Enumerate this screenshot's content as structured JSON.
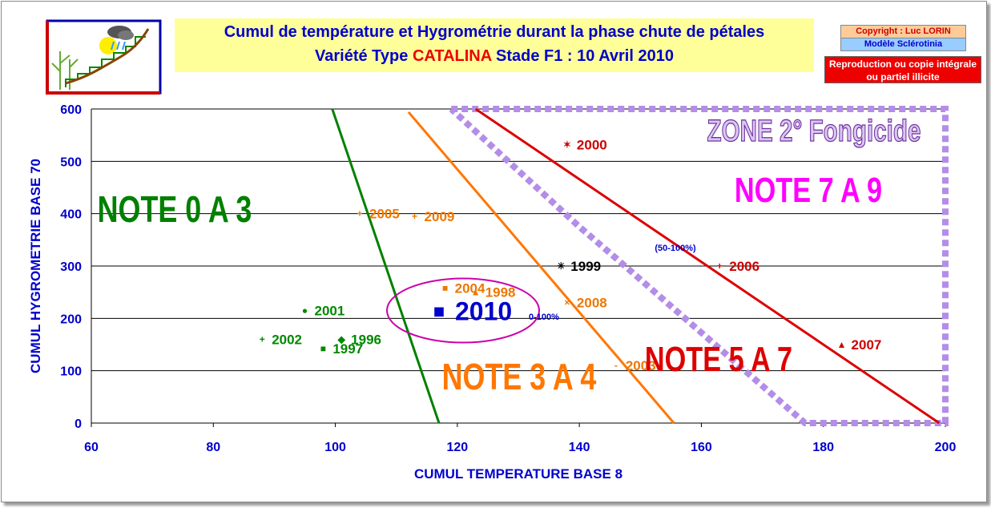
{
  "header": {
    "title_line1": "Cumul de température et Hygrométrie  durant la phase chute de pétales",
    "title_line2_prefix": "Variété Type",
    "variety": "CATALINA",
    "title_line2_suffix": "Stade F1  :  10 Avril 2010",
    "copyright": "Copyright : Luc LORIN",
    "model": "Modèle Sclérotinia",
    "reproduction": "Reproduction ou copie intégrale ou partiel illicite"
  },
  "chart_data": {
    "type": "scatter",
    "xlabel": "CUMUL TEMPERATURE BASE 8",
    "ylabel": "CUMUL HYGROMETRIE BASE 70",
    "xlim": [
      60,
      200
    ],
    "ylim": [
      0,
      600
    ],
    "x_ticks": [
      60,
      80,
      100,
      120,
      140,
      160,
      180,
      200
    ],
    "y_ticks": [
      0,
      100,
      200,
      300,
      400,
      500,
      600
    ],
    "grid": "horizontal",
    "points": [
      {
        "label": "2000",
        "x": 138,
        "y": 532,
        "color": "#cc0000",
        "marker": "✶"
      },
      {
        "label": "2005",
        "x": 104,
        "y": 400,
        "color": "#ee7700",
        "marker": "+"
      },
      {
        "label": "2009",
        "x": 113,
        "y": 395,
        "color": "#ee7700",
        "marker": "+"
      },
      {
        "label": "1999",
        "x": 137,
        "y": 300,
        "color": "#000000",
        "marker": "✳"
      },
      {
        "label": "2006",
        "x": 163,
        "y": 300,
        "color": "#cc0000",
        "marker": "+"
      },
      {
        "label": "2004",
        "x": 118,
        "y": 258,
        "color": "#ee7700",
        "marker": "■"
      },
      {
        "label": "1998",
        "x": 123,
        "y": 250,
        "color": "#ee7700",
        "marker": "▲"
      },
      {
        "label": "2001",
        "x": 95,
        "y": 215,
        "color": "#008800",
        "marker": "●"
      },
      {
        "label": "2010",
        "x": 117,
        "y": 215,
        "color": "#0000cc",
        "marker": "■"
      },
      {
        "label": "2008",
        "x": 138,
        "y": 230,
        "color": "#ee7700",
        "marker": "×"
      },
      {
        "label": "2002",
        "x": 88,
        "y": 160,
        "color": "#008800",
        "marker": "+"
      },
      {
        "label": "1996",
        "x": 101,
        "y": 160,
        "color": "#008800",
        "marker": "◆"
      },
      {
        "label": "1997",
        "x": 98,
        "y": 142,
        "color": "#008800",
        "marker": "■"
      },
      {
        "label": "2003",
        "x": 146,
        "y": 110,
        "color": "#ee7700",
        "marker": "-"
      },
      {
        "label": "2007",
        "x": 183,
        "y": 150,
        "color": "#cc0000",
        "marker": "▲"
      }
    ],
    "lines": [
      {
        "name": "green",
        "color": "#008000",
        "points": [
          [
            99.5,
            600
          ],
          [
            117,
            0
          ]
        ]
      },
      {
        "name": "orange",
        "color": "#ff7700",
        "points": [
          [
            112,
            594
          ],
          [
            155.5,
            0
          ]
        ]
      },
      {
        "name": "red",
        "color": "#dd0000",
        "points": [
          [
            123,
            600
          ],
          [
            199,
            0
          ]
        ]
      }
    ],
    "zone_outline": {
      "color": "#b38de8",
      "points": [
        [
          119,
          600
        ],
        [
          200,
          600
        ],
        [
          200,
          0
        ],
        [
          177,
          0
        ],
        [
          146,
          315
        ],
        [
          140,
          375
        ],
        [
          119,
          600
        ]
      ]
    },
    "annotations": [
      {
        "text": "ZONE 2° Fongicide",
        "color": "#7030a0"
      },
      {
        "text": "NOTE 0 A 3",
        "color": "#008000"
      },
      {
        "text": "NOTE 3 A 4",
        "color": "#ff7700"
      },
      {
        "text": "NOTE 5 A 7",
        "color": "#dd0000"
      },
      {
        "text": "NOTE 7 A 9",
        "color": "#ff00ff"
      },
      {
        "text": "(50-100%)",
        "color": "#0000cc"
      },
      {
        "text": "0-100%",
        "color": "#0000cc"
      }
    ]
  }
}
